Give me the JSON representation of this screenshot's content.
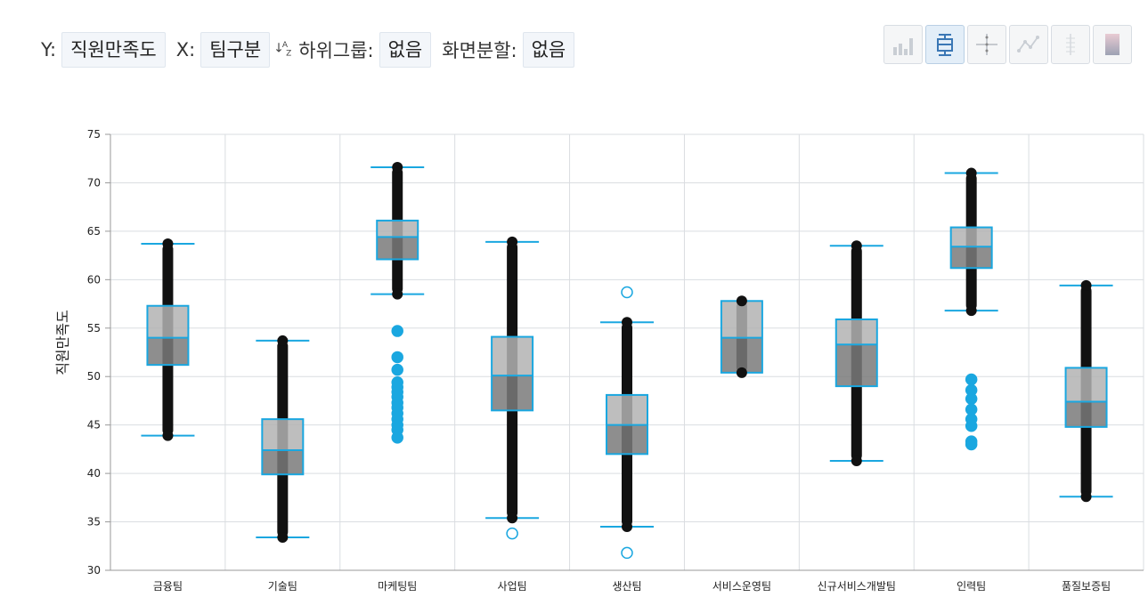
{
  "toolbar": {
    "y_label": "Y:",
    "y_value": "직원만족도",
    "x_label": "X:",
    "x_value": "팀구분",
    "sort_icon": "sort-az-icon",
    "subgroup_label": "하위그룹:",
    "subgroup_value": "없음",
    "split_label": "화면분할:",
    "split_value": "없음"
  },
  "chart_icons": [
    {
      "name": "bar-chart-icon",
      "active": false
    },
    {
      "name": "boxplot-icon",
      "active": true
    },
    {
      "name": "jitter-icon",
      "active": false
    },
    {
      "name": "line-chart-icon",
      "active": false
    },
    {
      "name": "dot-strip-icon",
      "active": false
    },
    {
      "name": "gradient-icon",
      "active": false
    }
  ],
  "colors": {
    "box_stroke": "#1aa7e0",
    "box_upper": "#b3b3b3",
    "box_lower": "#7a7a7a",
    "point": "#111111",
    "outlier": "#1aa7e0"
  },
  "chart_data": {
    "type": "boxplot",
    "ylabel": "직원만족도",
    "xlabel": "",
    "ylim": [
      30,
      75
    ],
    "yticks": [
      30,
      35,
      40,
      45,
      50,
      55,
      60,
      65,
      70,
      75
    ],
    "grid": true,
    "categories": [
      "금융팀",
      "기술팀",
      "마케팅팀",
      "사업팀",
      "생산팀",
      "서비스운영팀",
      "신규서비스개발팀",
      "인력팀",
      "품질보증팀"
    ],
    "boxes": [
      {
        "q1": 51.2,
        "median": 54.0,
        "q3": 57.3,
        "whisker_low": 43.9,
        "whisker_high": 63.7,
        "outliers": []
      },
      {
        "q1": 39.9,
        "median": 42.4,
        "q3": 45.6,
        "whisker_low": 33.4,
        "whisker_high": 53.7,
        "outliers": []
      },
      {
        "q1": 62.1,
        "median": 64.4,
        "q3": 66.1,
        "whisker_low": 58.5,
        "whisker_high": 71.6,
        "outliers": [
          54.7,
          52.0,
          50.7,
          49.4,
          48.9,
          48.4,
          47.9,
          47.3,
          46.8,
          46.2,
          45.6,
          45.0,
          44.5,
          43.7
        ]
      },
      {
        "q1": 46.5,
        "median": 50.1,
        "q3": 54.1,
        "whisker_low": 35.4,
        "whisker_high": 63.9,
        "outliers": [
          33.8
        ]
      },
      {
        "q1": 42.0,
        "median": 45.0,
        "q3": 48.1,
        "whisker_low": 34.5,
        "whisker_high": 55.6,
        "outliers": [
          58.7,
          31.8
        ]
      },
      {
        "q1": 50.4,
        "median": 54.0,
        "q3": 57.8,
        "whisker_low": 50.4,
        "whisker_high": 57.8,
        "outliers": []
      },
      {
        "q1": 49.0,
        "median": 53.3,
        "q3": 55.9,
        "whisker_low": 41.3,
        "whisker_high": 63.5,
        "outliers": []
      },
      {
        "q1": 61.2,
        "median": 63.4,
        "q3": 65.4,
        "whisker_low": 56.8,
        "whisker_high": 71.0,
        "outliers": [
          49.7,
          48.6,
          47.7,
          46.6,
          45.6,
          44.9,
          43.3,
          43.0
        ]
      },
      {
        "q1": 44.8,
        "median": 47.4,
        "q3": 50.9,
        "whisker_low": 37.6,
        "whisker_high": 59.4,
        "outliers": []
      }
    ]
  }
}
